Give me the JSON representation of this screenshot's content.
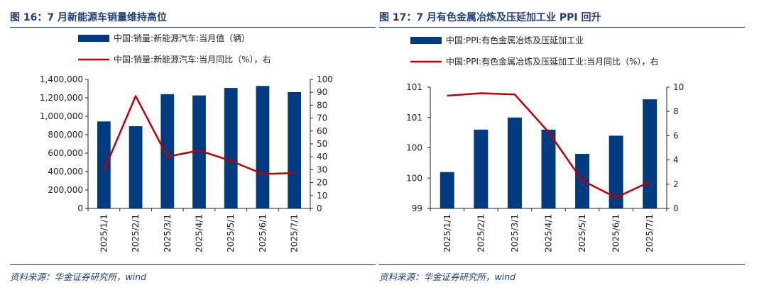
{
  "figures": [
    {
      "title": "图 16：7 月新能源车销量维持高位",
      "source": "资料来源：华金证券研究所，wind"
    },
    {
      "title": "图 17：7 月有色金属冶炼及压延加工业 PPI 回升",
      "source": "资料来源：华金证券研究所，wind"
    }
  ],
  "colors": {
    "bar": "#003a80",
    "line": "#c00000",
    "title": "#1f3d7a",
    "axis": "#222222"
  },
  "chart_data": [
    {
      "type": "bar+line",
      "title": "",
      "categories": [
        "2025/1/1",
        "2025/2/1",
        "2025/3/1",
        "2025/4/1",
        "2025/5/1",
        "2025/6/1",
        "2025/7/1"
      ],
      "series": [
        {
          "name": "中国:销量:新能源汽车:当月值（辆）",
          "type": "bar",
          "axis": "left",
          "values": [
            944000,
            892000,
            1240000,
            1226000,
            1307000,
            1329000,
            1262000
          ]
        },
        {
          "name": "中国:销量:新能源汽车:当月同比（%），右",
          "type": "line",
          "axis": "right",
          "values": [
            29.4,
            87.1,
            40.1,
            44.9,
            36.9,
            26.7,
            27.4
          ]
        }
      ],
      "left_axis": {
        "ylim": [
          0,
          1400000
        ],
        "ticks": [
          "0",
          "200,000",
          "400,000",
          "600,000",
          "800,000",
          "1,000,000",
          "1,200,000",
          "1,400,000"
        ]
      },
      "right_axis": {
        "ylim": [
          0,
          100
        ],
        "ticks": [
          "0",
          "10",
          "20",
          "30",
          "40",
          "50",
          "60",
          "70",
          "80",
          "90",
          "100"
        ]
      },
      "legend_position": "top",
      "grid": false
    },
    {
      "type": "bar+line",
      "title": "",
      "categories": [
        "2025/1/1",
        "2025/2/1",
        "2025/3/1",
        "2025/4/1",
        "2025/5/1",
        "2025/6/1",
        "2025/7/1"
      ],
      "series": [
        {
          "name": "中国:PPI:有色金属冶炼及压延加工业",
          "type": "bar",
          "axis": "left",
          "values": [
            99.6,
            100.3,
            100.5,
            100.3,
            99.9,
            100.2,
            100.8
          ]
        },
        {
          "name": "中国:PPI:有色金属冶炼及压延加工业:当月同比（%），右",
          "type": "line",
          "axis": "right",
          "values": [
            9.3,
            9.5,
            9.4,
            6.3,
            2.3,
            0.9,
            2.2
          ]
        }
      ],
      "left_axis": {
        "ylim": [
          99,
          101
        ],
        "ticks": [
          "99",
          "100",
          "100",
          "101",
          "101"
        ]
      },
      "right_axis": {
        "ylim": [
          0,
          10
        ],
        "ticks": [
          "0",
          "2",
          "4",
          "6",
          "8",
          "10"
        ]
      },
      "legend_position": "top",
      "grid": false
    }
  ]
}
